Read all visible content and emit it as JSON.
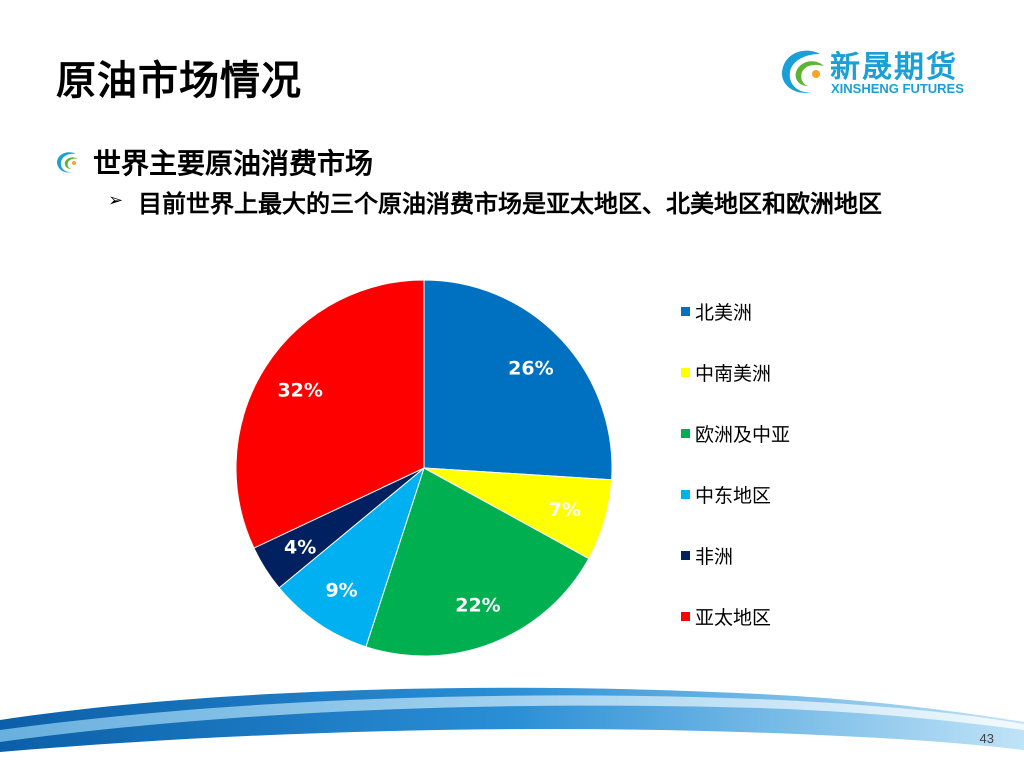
{
  "slide": {
    "title": "原油市场情况",
    "bullet_level1": "世界主要原油消费市场",
    "bullet_level2": "目前世界上最大的三个原油消费市场是亚太地区、北美地区和欧洲地区",
    "page_number": "43"
  },
  "logo": {
    "name_cn": "新晟期货",
    "name_en": "XINSHENG FUTURES",
    "color": "#1a9fd6"
  },
  "chart_data": {
    "type": "pie",
    "title": "",
    "legend_position": "right",
    "start_angle_deg": 0,
    "direction": "clockwise",
    "slices": [
      {
        "name": "北美洲",
        "value": 26,
        "label": "26%",
        "color": "#0070c0"
      },
      {
        "name": "中南美洲",
        "value": 7,
        "label": "7%",
        "color": "#ffff00"
      },
      {
        "name": "欧洲及中亚",
        "value": 22,
        "label": "22%",
        "color": "#00b050"
      },
      {
        "name": "中东地区",
        "value": 9,
        "label": "9%",
        "color": "#00b0f0"
      },
      {
        "name": "非洲",
        "value": 4,
        "label": "4%",
        "color": "#002060"
      },
      {
        "name": "亚太地区",
        "value": 32,
        "label": "32%",
        "color": "#ff0000"
      }
    ]
  }
}
